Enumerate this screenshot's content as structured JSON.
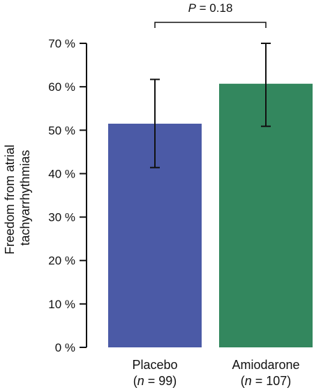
{
  "chart_data": {
    "type": "bar",
    "categories": [
      "Placebo",
      "Amiodarone"
    ],
    "category_notes": [
      {
        "prefix": "(",
        "n_label": "n",
        "equals": " = 99)"
      },
      {
        "prefix": "(",
        "n_label": "n",
        "equals": " = 107)"
      }
    ],
    "values": [
      51.5,
      60.7
    ],
    "error_low": [
      41.4,
      50.9
    ],
    "error_high": [
      61.7,
      70.0
    ],
    "colors": [
      "#4b5aa6",
      "#33875e"
    ],
    "ylabel_line1": "Freedom from atrial",
    "ylabel_line2": "tachyarrhythmias",
    "ylim": [
      0,
      70
    ],
    "yticks": [
      0,
      10,
      20,
      30,
      40,
      50,
      60,
      70
    ],
    "ytick_labels": [
      "0 %",
      "10 %",
      "20 %",
      "30 %",
      "40 %",
      "50 %",
      "60 %",
      "70 %"
    ],
    "annotation": {
      "p_symbol": "P",
      "p_text": " = 0.18"
    },
    "grid": false,
    "legend": "none"
  }
}
